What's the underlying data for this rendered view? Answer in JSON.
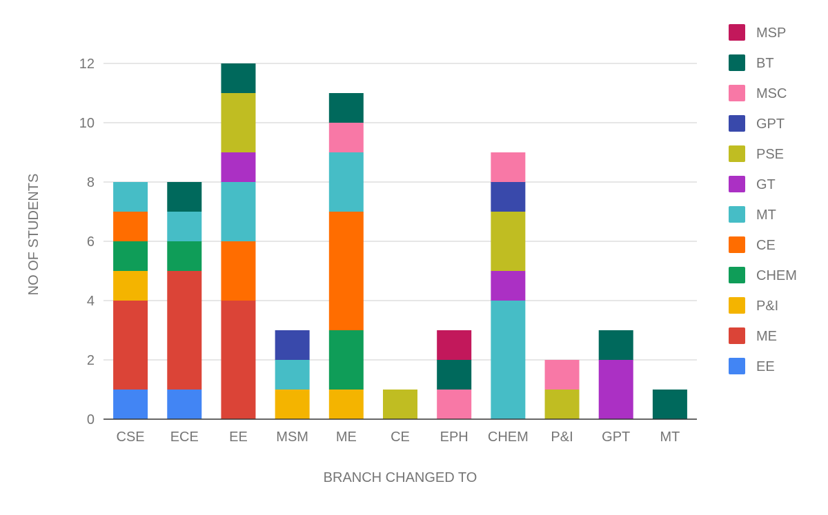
{
  "chart_data": {
    "type": "bar",
    "stacked": true,
    "title": "",
    "xlabel": "BRANCH CHANGED TO",
    "ylabel": "NO OF STUDENTS",
    "ylim": [
      0,
      12
    ],
    "yticks": [
      0,
      2,
      4,
      6,
      8,
      10,
      12
    ],
    "grid": true,
    "legend_position": "right",
    "categories": [
      "CSE",
      "ECE",
      "EE",
      "MSM",
      "ME",
      "CE",
      "EPH",
      "CHEM",
      "P&I",
      "GPT",
      "MT"
    ],
    "series": [
      {
        "name": "EE",
        "color": "#4285f4",
        "values": [
          1,
          1,
          0,
          0,
          0,
          0,
          0,
          0,
          0,
          0,
          0
        ]
      },
      {
        "name": "ME",
        "color": "#db4437",
        "values": [
          3,
          4,
          4,
          0,
          0,
          0,
          0,
          0,
          0,
          0,
          0
        ]
      },
      {
        "name": "P&I",
        "color": "#f4b400",
        "values": [
          1,
          0,
          0,
          1,
          1,
          0,
          0,
          0,
          0,
          0,
          0
        ]
      },
      {
        "name": "CHEM",
        "color": "#0f9d58",
        "values": [
          1,
          1,
          0,
          0,
          2,
          0,
          0,
          0,
          0,
          0,
          0
        ]
      },
      {
        "name": "CE",
        "color": "#ff6d00",
        "values": [
          1,
          0,
          2,
          0,
          4,
          0,
          0,
          0,
          0,
          0,
          0
        ]
      },
      {
        "name": "MT",
        "color": "#46bdc6",
        "values": [
          1,
          1,
          2,
          1,
          2,
          0,
          0,
          4,
          0,
          0,
          0
        ]
      },
      {
        "name": "GT",
        "color": "#ab30c4",
        "values": [
          0,
          0,
          1,
          0,
          0,
          0,
          0,
          1,
          0,
          2,
          0
        ]
      },
      {
        "name": "PSE",
        "color": "#c0bd22",
        "values": [
          0,
          0,
          2,
          0,
          0,
          1,
          0,
          2,
          1,
          0,
          0
        ]
      },
      {
        "name": "GPT",
        "color": "#3949ab",
        "values": [
          0,
          0,
          0,
          1,
          0,
          0,
          0,
          1,
          0,
          0,
          0
        ]
      },
      {
        "name": "MSC",
        "color": "#f878a6",
        "values": [
          0,
          0,
          0,
          0,
          1,
          0,
          1,
          1,
          1,
          0,
          0
        ]
      },
      {
        "name": "BT",
        "color": "#00695c",
        "values": [
          0,
          1,
          1,
          0,
          1,
          0,
          1,
          0,
          0,
          1,
          1
        ]
      },
      {
        "name": "MSP",
        "color": "#c2185b",
        "values": [
          0,
          0,
          0,
          0,
          0,
          0,
          1,
          0,
          0,
          0,
          0
        ]
      }
    ]
  }
}
